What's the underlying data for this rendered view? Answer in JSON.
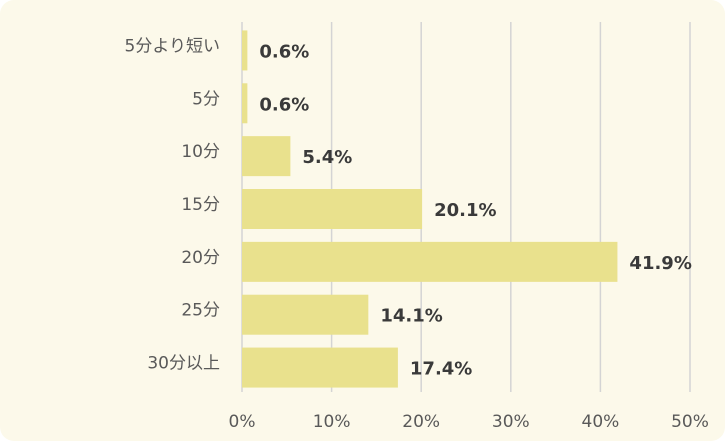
{
  "chart_data": {
    "type": "hbar",
    "categories": [
      "5分より短い",
      "5分",
      "10分",
      "15分",
      "20分",
      "25分",
      "30分以上"
    ],
    "values": [
      0.6,
      0.6,
      5.4,
      20.1,
      41.9,
      14.1,
      17.4
    ],
    "value_labels": [
      "0.6%",
      "0.6%",
      "5.4%",
      "20.1%",
      "41.9%",
      "14.1%",
      "17.4%"
    ],
    "color": "#e9e18d",
    "xlim": [
      0,
      50
    ],
    "xticks": [
      {
        "value": 0,
        "label": "0%"
      },
      {
        "value": 10,
        "label": "10%"
      },
      {
        "value": 20,
        "label": "20%"
      },
      {
        "value": 30,
        "label": "30%"
      },
      {
        "value": 40,
        "label": "40%"
      },
      {
        "value": 50,
        "label": "50%"
      }
    ],
    "grid": true
  }
}
